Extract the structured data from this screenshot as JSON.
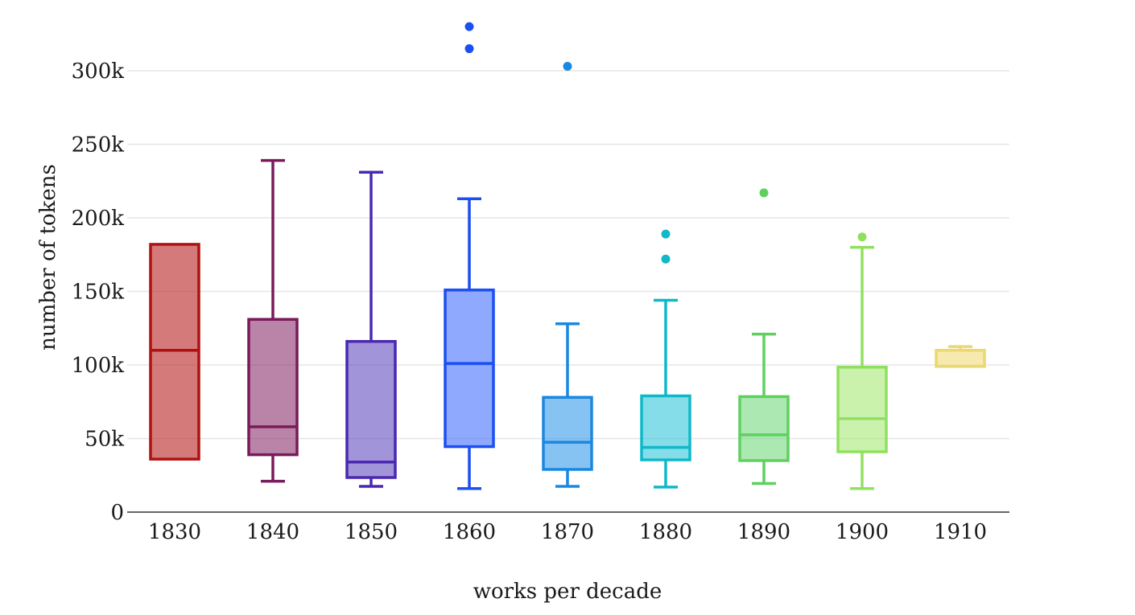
{
  "chart_data": {
    "type": "box",
    "xlabel": "works per decade",
    "ylabel": "number of tokens",
    "ylim": [
      0,
      330000
    ],
    "y_ticks": [
      {
        "value": 0,
        "label": "0"
      },
      {
        "value": 50000,
        "label": "50k"
      },
      {
        "value": 100000,
        "label": "100k"
      },
      {
        "value": 150000,
        "label": "150k"
      },
      {
        "value": 200000,
        "label": "200k"
      },
      {
        "value": 250000,
        "label": "250k"
      },
      {
        "value": 300000,
        "label": "300k"
      }
    ],
    "grid": true,
    "legend": "none",
    "categories": [
      "1830",
      "1840",
      "1850",
      "1860",
      "1870",
      "1880",
      "1890",
      "1900",
      "1910"
    ],
    "boxes": [
      {
        "category": "1830",
        "min": 36000,
        "q1": 36000,
        "median": 110000,
        "q3": 182000,
        "max": 182000,
        "outliers": [],
        "color": "#b01010",
        "fill": "rgba(190,50,50,0.65)"
      },
      {
        "category": "1840",
        "min": 21000,
        "q1": 39000,
        "median": 58000,
        "q3": 131000,
        "max": 239000,
        "outliers": [],
        "color": "#7a1a5a",
        "fill": "rgba(140,50,110,0.6)"
      },
      {
        "category": "1850",
        "min": 17500,
        "q1": 23500,
        "median": 34000,
        "q3": 116000,
        "max": 231000,
        "outliers": [],
        "color": "#4a28b0",
        "fill": "rgba(95,70,190,0.58)"
      },
      {
        "category": "1860",
        "min": 16000,
        "q1": 44500,
        "median": 101000,
        "q3": 151000,
        "max": 213000,
        "outliers": [
          315000,
          330000
        ],
        "color": "#1c4ff0",
        "fill": "rgba(40,90,255,0.52)"
      },
      {
        "category": "1870",
        "min": 17500,
        "q1": 29000,
        "median": 47500,
        "q3": 78000,
        "max": 128000,
        "outliers": [
          303000
        ],
        "color": "#1a88e0",
        "fill": "rgba(25,140,230,0.52)"
      },
      {
        "category": "1880",
        "min": 17000,
        "q1": 35500,
        "median": 44000,
        "q3": 79000,
        "max": 144000,
        "outliers": [
          172000,
          189000
        ],
        "color": "#10b8c8",
        "fill": "rgba(20,190,210,0.52)"
      },
      {
        "category": "1890",
        "min": 19500,
        "q1": 35000,
        "median": 52500,
        "q3": 78500,
        "max": 121000,
        "outliers": [
          217000
        ],
        "color": "#5fd060",
        "fill": "rgba(90,210,100,0.5)"
      },
      {
        "category": "1900",
        "min": 16000,
        "q1": 41000,
        "median": 63500,
        "q3": 98500,
        "max": 180000,
        "outliers": [
          187000
        ],
        "color": "#90e060",
        "fill": "rgba(150,230,90,0.5)"
      },
      {
        "category": "1910",
        "min": 99000,
        "q1": 99000,
        "median": 110000,
        "q3": 110000,
        "max": 112500,
        "outliers": [],
        "color": "#ecd870",
        "fill": "rgba(240,220,120,0.6)"
      }
    ]
  }
}
